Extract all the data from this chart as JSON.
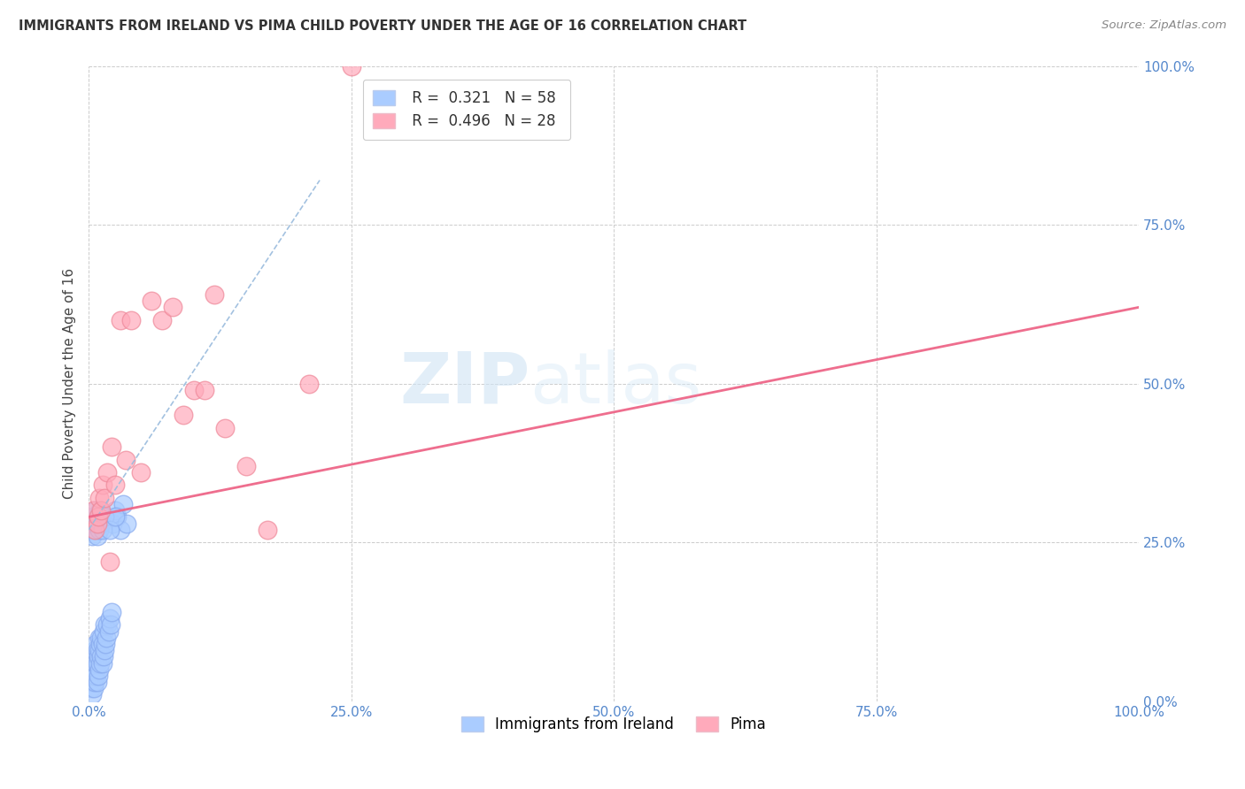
{
  "title": "IMMIGRANTS FROM IRELAND VS PIMA CHILD POVERTY UNDER THE AGE OF 16 CORRELATION CHART",
  "source": "Source: ZipAtlas.com",
  "ylabel": "Child Poverty Under the Age of 16",
  "xlim": [
    0.0,
    1.0
  ],
  "ylim": [
    0.0,
    1.0
  ],
  "xticks": [
    0.0,
    0.25,
    0.5,
    0.75,
    1.0
  ],
  "yticks": [
    0.0,
    0.25,
    0.5,
    0.75,
    1.0
  ],
  "legend_r1": "R =  0.321",
  "legend_n1": "N = 58",
  "legend_r2": "R =  0.496",
  "legend_n2": "N = 28",
  "blue_color": "#aaccff",
  "blue_edge_color": "#88aaee",
  "pink_color": "#ffaabb",
  "pink_edge_color": "#ee8899",
  "blue_line_color": "#99bbdd",
  "pink_line_color": "#ee6688",
  "watermark_zip": "ZIP",
  "watermark_atlas": "atlas",
  "blue_points_x": [
    0.002,
    0.003,
    0.004,
    0.004,
    0.005,
    0.005,
    0.005,
    0.006,
    0.006,
    0.006,
    0.007,
    0.007,
    0.007,
    0.008,
    0.008,
    0.008,
    0.009,
    0.009,
    0.01,
    0.01,
    0.01,
    0.011,
    0.011,
    0.012,
    0.012,
    0.013,
    0.013,
    0.014,
    0.014,
    0.015,
    0.015,
    0.016,
    0.017,
    0.018,
    0.019,
    0.02,
    0.021,
    0.022,
    0.023,
    0.025,
    0.027,
    0.03,
    0.033,
    0.036,
    0.003,
    0.004,
    0.005,
    0.006,
    0.007,
    0.008,
    0.009,
    0.01,
    0.011,
    0.012,
    0.013,
    0.015,
    0.02,
    0.025
  ],
  "blue_points_y": [
    0.02,
    0.01,
    0.03,
    0.05,
    0.02,
    0.04,
    0.07,
    0.03,
    0.05,
    0.08,
    0.04,
    0.06,
    0.09,
    0.03,
    0.06,
    0.08,
    0.04,
    0.07,
    0.05,
    0.08,
    0.1,
    0.06,
    0.09,
    0.07,
    0.1,
    0.06,
    0.09,
    0.07,
    0.11,
    0.08,
    0.12,
    0.09,
    0.1,
    0.12,
    0.11,
    0.13,
    0.12,
    0.14,
    0.28,
    0.3,
    0.29,
    0.27,
    0.31,
    0.28,
    0.26,
    0.29,
    0.27,
    0.3,
    0.28,
    0.26,
    0.29,
    0.27,
    0.3,
    0.28,
    0.27,
    0.29,
    0.27,
    0.29
  ],
  "pink_points_x": [
    0.004,
    0.006,
    0.008,
    0.009,
    0.01,
    0.012,
    0.013,
    0.015,
    0.018,
    0.02,
    0.022,
    0.025,
    0.03,
    0.035,
    0.04,
    0.05,
    0.06,
    0.07,
    0.08,
    0.09,
    0.1,
    0.11,
    0.12,
    0.13,
    0.15,
    0.17,
    0.21,
    0.25
  ],
  "pink_points_y": [
    0.3,
    0.27,
    0.28,
    0.29,
    0.32,
    0.3,
    0.34,
    0.32,
    0.36,
    0.22,
    0.4,
    0.34,
    0.6,
    0.38,
    0.6,
    0.36,
    0.63,
    0.6,
    0.62,
    0.45,
    0.49,
    0.49,
    0.64,
    0.43,
    0.37,
    0.27,
    0.5,
    1.0
  ],
  "blue_trendline_x": [
    0.0,
    0.22
  ],
  "blue_trendline_y": [
    0.27,
    0.82
  ],
  "pink_trendline_x": [
    0.0,
    1.0
  ],
  "pink_trendline_y": [
    0.29,
    0.62
  ]
}
